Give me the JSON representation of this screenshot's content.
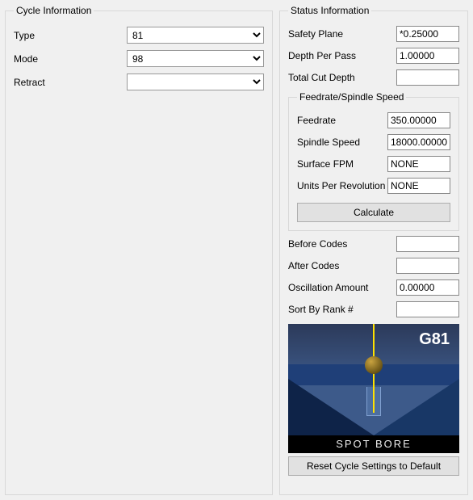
{
  "cycle_info": {
    "legend": "Cycle Information",
    "type_label": "Type",
    "type_value": "81",
    "mode_label": "Mode",
    "mode_value": "98",
    "retract_label": "Retract",
    "retract_value": ""
  },
  "status_info": {
    "legend": "Status Information",
    "safety_plane_label": "Safety Plane",
    "safety_plane_value": "*0.25000",
    "depth_per_pass_label": "Depth Per Pass",
    "depth_per_pass_value": "1.00000",
    "total_cut_depth_label": "Total Cut Depth",
    "total_cut_depth_value": "",
    "feedrate_group": {
      "legend": "Feedrate/Spindle Speed",
      "feedrate_label": "Feedrate",
      "feedrate_value": "350.00000",
      "spindle_label": "Spindle Speed",
      "spindle_value": "18000.00000",
      "surface_fpm_label": "Surface FPM",
      "surface_fpm_value": "NONE",
      "units_per_rev_label": "Units Per Revolution",
      "units_per_rev_value": "NONE",
      "calculate_label": "Calculate"
    },
    "before_codes_label": "Before Codes",
    "before_codes_value": "",
    "after_codes_label": "After Codes",
    "after_codes_value": "",
    "oscillation_label": "Oscillation Amount",
    "oscillation_value": "0.00000",
    "sort_rank_label": "Sort By Rank #",
    "sort_rank_value": "",
    "reset_label": "Reset Cycle Settings to Default"
  },
  "preview": {
    "gcode": "G81",
    "caption": "SPOT BORE",
    "colors": {
      "sky_top": "#2c3a5a",
      "sky_mid": "#3d5a8a",
      "block_top": "#1f3f78",
      "block_left": "#0e2348",
      "block_right": "#183766",
      "line": "#ffe100",
      "text": "#ffffff"
    }
  }
}
